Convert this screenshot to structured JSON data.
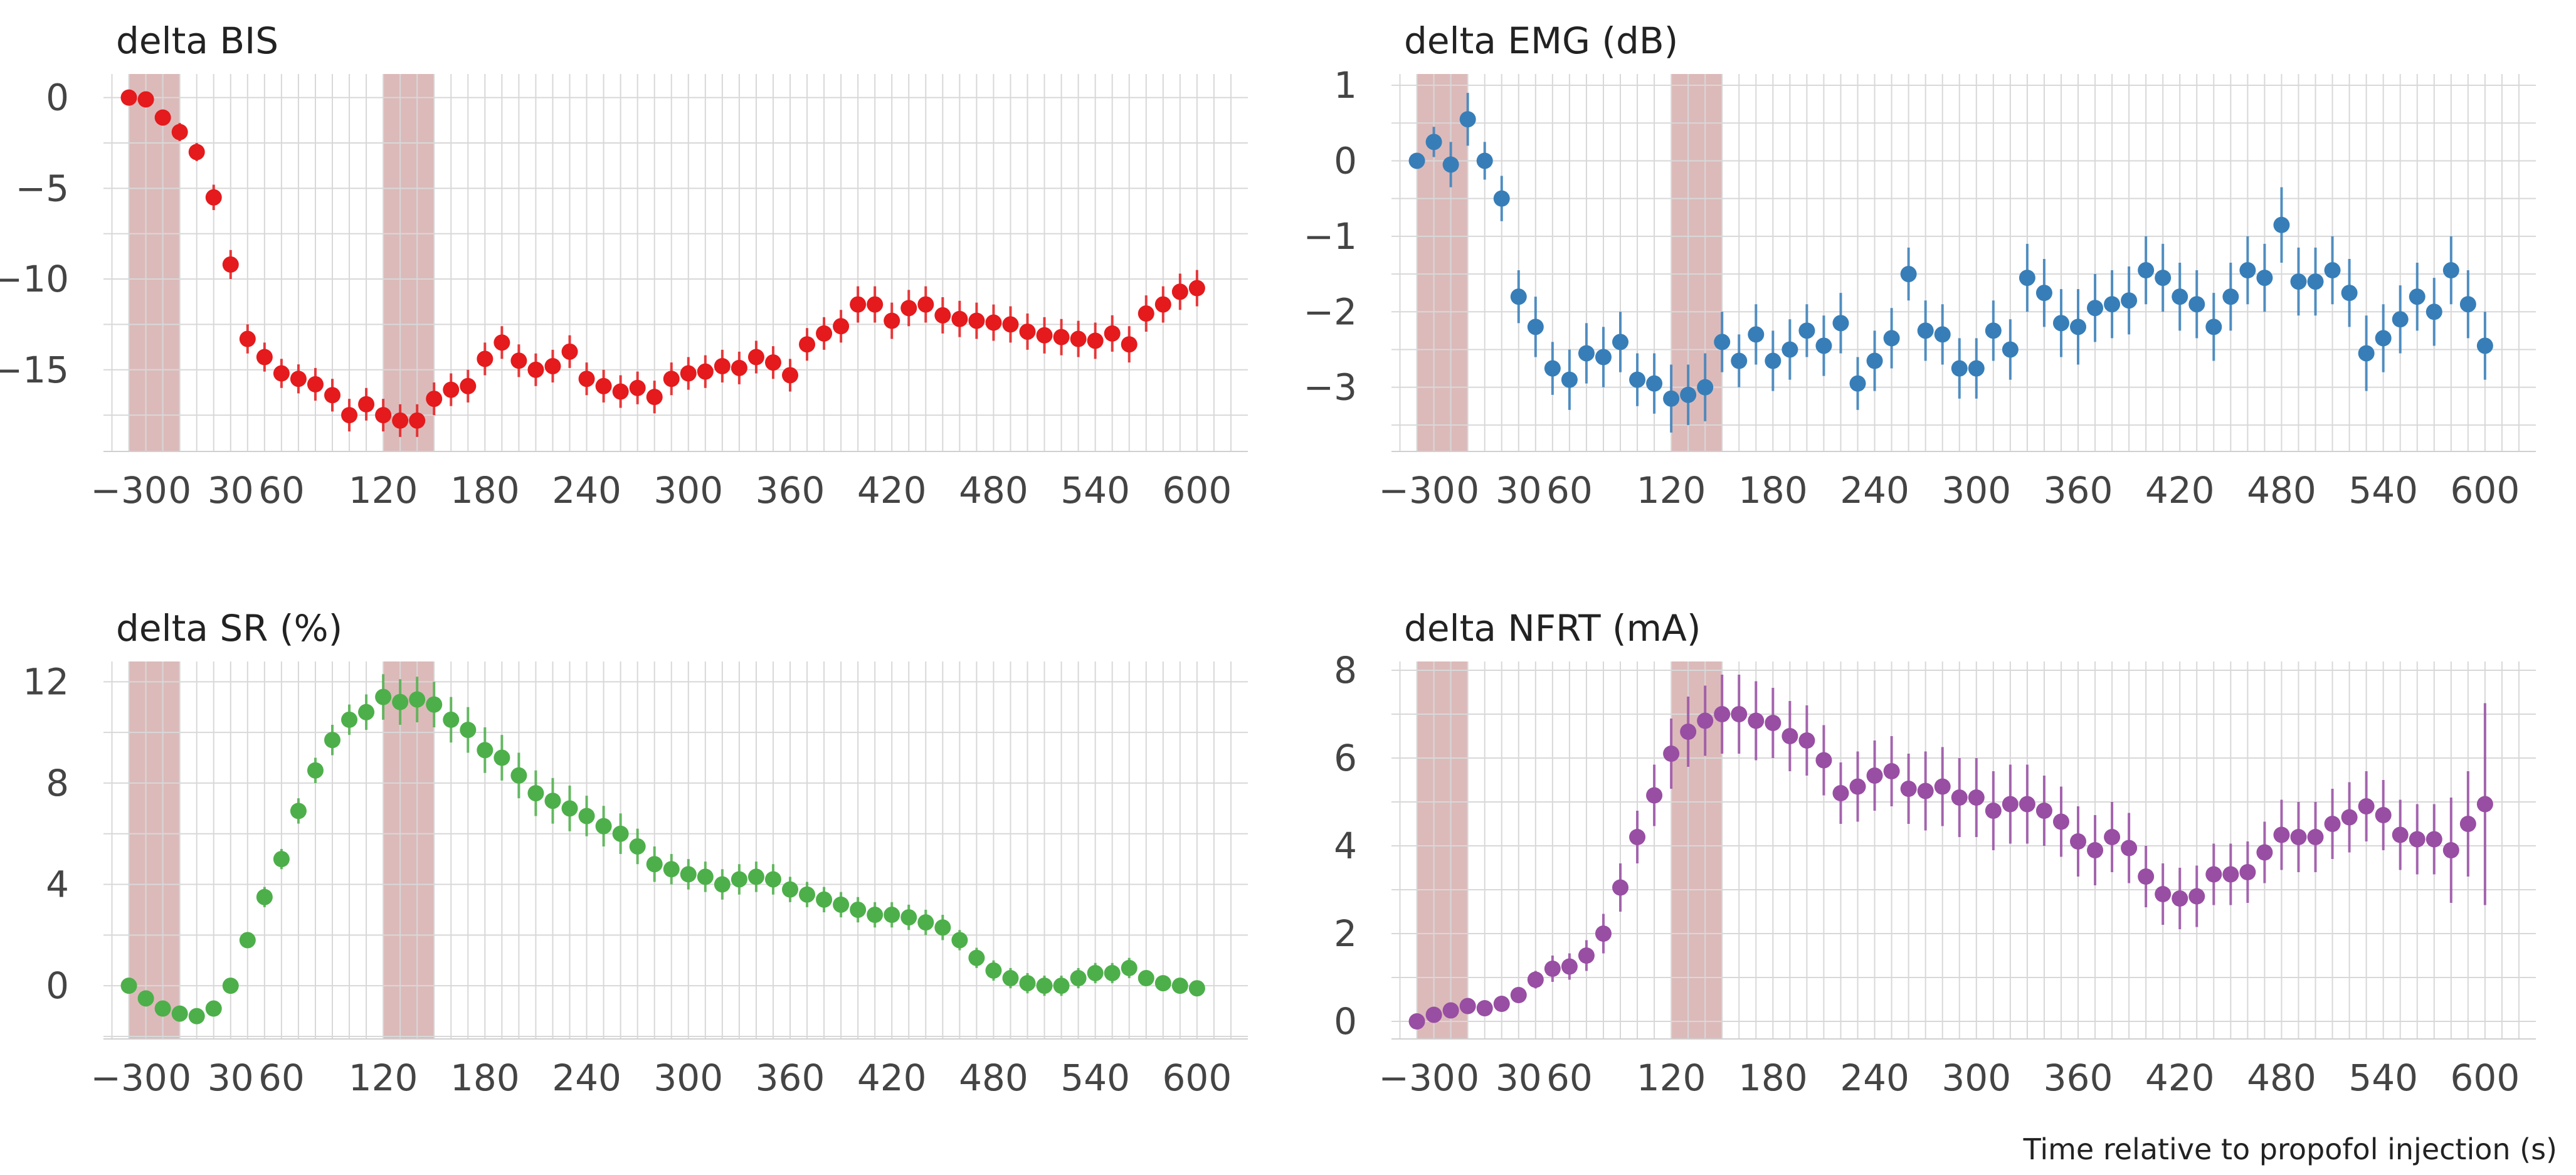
{
  "xlabel": "Time relative to propofol injection (s)",
  "chart_data": [
    {
      "type": "scatter",
      "title": "delta BIS",
      "color": "#e41a1c",
      "x": [
        -30,
        -20,
        -10,
        0,
        10,
        20,
        30,
        40,
        50,
        60,
        70,
        80,
        90,
        100,
        110,
        120,
        130,
        140,
        150,
        160,
        170,
        180,
        190,
        200,
        210,
        220,
        230,
        240,
        250,
        260,
        270,
        280,
        290,
        300,
        310,
        320,
        330,
        340,
        350,
        360,
        370,
        380,
        390,
        400,
        410,
        420,
        430,
        440,
        450,
        460,
        470,
        480,
        490,
        500,
        510,
        520,
        530,
        540,
        550,
        560,
        570,
        580,
        590,
        600
      ],
      "y": [
        0,
        -0.1,
        -1.1,
        -1.9,
        -3.0,
        -5.5,
        -9.2,
        -13.3,
        -14.3,
        -15.2,
        -15.5,
        -15.8,
        -16.4,
        -17.5,
        -16.9,
        -17.5,
        -17.8,
        -17.8,
        -16.6,
        -16.1,
        -15.9,
        -14.4,
        -13.5,
        -14.5,
        -15.0,
        -14.8,
        -14.0,
        -15.5,
        -15.9,
        -16.2,
        -16.0,
        -16.5,
        -15.5,
        -15.2,
        -15.1,
        -14.8,
        -14.9,
        -14.3,
        -14.6,
        -15.3,
        -13.6,
        -13.0,
        -12.6,
        -11.4,
        -11.4,
        -12.3,
        -11.6,
        -11.4,
        -12.0,
        -12.2,
        -12.3,
        -12.4,
        -12.5,
        -12.9,
        -13.1,
        -13.2,
        -13.3,
        -13.4,
        -13.0,
        -13.6,
        -11.9,
        -11.4,
        -10.7,
        -10.5
      ],
      "err": [
        0.3,
        0.3,
        0.4,
        0.5,
        0.5,
        0.7,
        0.8,
        0.8,
        0.8,
        0.8,
        0.8,
        0.9,
        0.9,
        0.9,
        0.9,
        0.9,
        0.9,
        0.9,
        0.9,
        0.9,
        0.9,
        0.9,
        0.9,
        0.9,
        0.9,
        0.9,
        0.9,
        0.9,
        0.9,
        0.9,
        0.9,
        0.9,
        0.9,
        0.9,
        0.9,
        0.9,
        0.9,
        0.9,
        0.9,
        0.9,
        0.9,
        0.9,
        0.9,
        1.0,
        1.0,
        1.0,
        1.0,
        1.0,
        1.0,
        1.0,
        1.0,
        1.0,
        1.0,
        1.0,
        1.0,
        1.0,
        1.0,
        1.0,
        1.0,
        1.0,
        1.0,
        1.0,
        1.0,
        1.0
      ],
      "ylim": [
        -19.5,
        1.3
      ],
      "yticks": [
        0,
        -5,
        -10,
        -15
      ],
      "ytick_labels": [
        "0",
        "−5",
        "−10",
        "−15"
      ],
      "xlim": [
        -45,
        630
      ],
      "xticks": [
        -30,
        0,
        30,
        60,
        120,
        180,
        240,
        300,
        360,
        420,
        480,
        540,
        600
      ],
      "xtick_labels": [
        "−30",
        "0",
        "30",
        "60",
        "120",
        "180",
        "240",
        "300",
        "360",
        "420",
        "480",
        "540",
        "600"
      ],
      "shaded": [
        [
          -30,
          0
        ],
        [
          120,
          150
        ]
      ],
      "grid": true
    },
    {
      "type": "scatter",
      "title": "delta EMG (dB)",
      "color": "#377eb8",
      "x": [
        -30,
        -20,
        -10,
        0,
        10,
        20,
        30,
        40,
        50,
        60,
        70,
        80,
        90,
        100,
        110,
        120,
        130,
        140,
        150,
        160,
        170,
        180,
        190,
        200,
        210,
        220,
        230,
        240,
        250,
        260,
        270,
        280,
        290,
        300,
        310,
        320,
        330,
        340,
        350,
        360,
        370,
        380,
        390,
        400,
        410,
        420,
        430,
        440,
        450,
        460,
        470,
        480,
        490,
        500,
        510,
        520,
        530,
        540,
        550,
        560,
        570,
        580,
        590,
        600
      ],
      "y": [
        0,
        0.25,
        -0.05,
        0.55,
        0,
        -0.5,
        -1.8,
        -2.2,
        -2.75,
        -2.9,
        -2.55,
        -2.6,
        -2.4,
        -2.9,
        -2.95,
        -3.15,
        -3.1,
        -3.0,
        -2.4,
        -2.65,
        -2.3,
        -2.65,
        -2.5,
        -2.25,
        -2.45,
        -2.15,
        -2.95,
        -2.65,
        -2.35,
        -1.5,
        -2.25,
        -2.3,
        -2.75,
        -2.75,
        -2.25,
        -2.5,
        -1.55,
        -1.75,
        -2.15,
        -2.2,
        -1.95,
        -1.9,
        -1.85,
        -1.45,
        -1.55,
        -1.8,
        -1.9,
        -2.2,
        -1.8,
        -1.45,
        -1.55,
        -0.85,
        -1.6,
        -1.6,
        -1.45,
        -1.75,
        -2.55,
        -2.35,
        -2.1,
        -1.8,
        -2.0,
        -1.45,
        -1.9,
        -2.45
      ],
      "err": [
        0.1,
        0.2,
        0.3,
        0.35,
        0.25,
        0.3,
        0.35,
        0.4,
        0.35,
        0.4,
        0.4,
        0.4,
        0.4,
        0.35,
        0.4,
        0.45,
        0.4,
        0.45,
        0.4,
        0.35,
        0.4,
        0.4,
        0.4,
        0.35,
        0.4,
        0.4,
        0.35,
        0.4,
        0.4,
        0.35,
        0.4,
        0.4,
        0.4,
        0.4,
        0.4,
        0.4,
        0.45,
        0.45,
        0.45,
        0.5,
        0.45,
        0.45,
        0.45,
        0.45,
        0.45,
        0.45,
        0.45,
        0.45,
        0.45,
        0.45,
        0.45,
        0.5,
        0.45,
        0.45,
        0.45,
        0.45,
        0.5,
        0.45,
        0.45,
        0.45,
        0.45,
        0.45,
        0.45,
        0.45
      ],
      "ylim": [
        -3.85,
        1.15
      ],
      "yticks": [
        1,
        0,
        -1,
        -2,
        -3
      ],
      "ytick_labels": [
        "1",
        "0",
        "−1",
        "−2",
        "−3"
      ],
      "xlim": [
        -45,
        630
      ],
      "xticks": [
        -30,
        0,
        30,
        60,
        120,
        180,
        240,
        300,
        360,
        420,
        480,
        540,
        600
      ],
      "xtick_labels": [
        "−30",
        "0",
        "30",
        "60",
        "120",
        "180",
        "240",
        "300",
        "360",
        "420",
        "480",
        "540",
        "600"
      ],
      "shaded": [
        [
          -30,
          0
        ],
        [
          120,
          150
        ]
      ],
      "grid": true
    },
    {
      "type": "scatter",
      "title": "delta SR (%)",
      "color": "#4daf4a",
      "x": [
        -30,
        -20,
        -10,
        0,
        10,
        20,
        30,
        40,
        50,
        60,
        70,
        80,
        90,
        100,
        110,
        120,
        130,
        140,
        150,
        160,
        170,
        180,
        190,
        200,
        210,
        220,
        230,
        240,
        250,
        260,
        270,
        280,
        290,
        300,
        310,
        320,
        330,
        340,
        350,
        360,
        370,
        380,
        390,
        400,
        410,
        420,
        430,
        440,
        450,
        460,
        470,
        480,
        490,
        500,
        510,
        520,
        530,
        540,
        550,
        560,
        570,
        580,
        590,
        600
      ],
      "y": [
        0,
        -0.5,
        -0.9,
        -1.1,
        -1.2,
        -0.9,
        0,
        1.8,
        3.5,
        5.0,
        6.9,
        8.5,
        9.7,
        10.5,
        10.8,
        11.4,
        11.2,
        11.3,
        11.1,
        10.5,
        10.1,
        9.3,
        9.0,
        8.3,
        7.6,
        7.3,
        7.0,
        6.7,
        6.3,
        6.0,
        5.5,
        4.8,
        4.6,
        4.4,
        4.3,
        4.0,
        4.2,
        4.3,
        4.2,
        3.8,
        3.6,
        3.4,
        3.2,
        3.0,
        2.8,
        2.8,
        2.7,
        2.5,
        2.3,
        1.8,
        1.1,
        0.6,
        0.3,
        0.1,
        0,
        0,
        0.3,
        0.5,
        0.5,
        0.7,
        0.3,
        0.1,
        0,
        -0.1
      ],
      "err": [
        0.2,
        0.2,
        0.2,
        0.2,
        0.2,
        0.3,
        0.3,
        0.3,
        0.4,
        0.4,
        0.5,
        0.5,
        0.6,
        0.6,
        0.7,
        0.9,
        0.9,
        0.9,
        0.9,
        0.9,
        0.9,
        0.9,
        0.9,
        0.9,
        0.9,
        0.9,
        0.9,
        0.8,
        0.8,
        0.8,
        0.7,
        0.7,
        0.6,
        0.6,
        0.6,
        0.6,
        0.6,
        0.6,
        0.6,
        0.5,
        0.5,
        0.5,
        0.5,
        0.5,
        0.5,
        0.5,
        0.5,
        0.5,
        0.5,
        0.4,
        0.4,
        0.4,
        0.4,
        0.4,
        0.4,
        0.4,
        0.4,
        0.4,
        0.4,
        0.4,
        0.3,
        0.3,
        0.3,
        0.3
      ],
      "ylim": [
        -2.1,
        12.8
      ],
      "yticks": [
        12,
        8,
        4,
        0
      ],
      "ytick_labels": [
        "12",
        "8",
        "4",
        "0"
      ],
      "xlim": [
        -45,
        630
      ],
      "xticks": [
        -30,
        0,
        30,
        60,
        120,
        180,
        240,
        300,
        360,
        420,
        480,
        540,
        600
      ],
      "xtick_labels": [
        "−30",
        "0",
        "30",
        "60",
        "120",
        "180",
        "240",
        "300",
        "360",
        "420",
        "480",
        "540",
        "600"
      ],
      "shaded": [
        [
          -30,
          0
        ],
        [
          120,
          150
        ]
      ],
      "grid": true
    },
    {
      "type": "scatter",
      "title": "delta NFRT (mA)",
      "color": "#984ea3",
      "x": [
        -30,
        -20,
        -10,
        0,
        10,
        20,
        30,
        40,
        50,
        60,
        70,
        80,
        90,
        100,
        110,
        120,
        130,
        140,
        150,
        160,
        170,
        180,
        190,
        200,
        210,
        220,
        230,
        240,
        250,
        260,
        270,
        280,
        290,
        300,
        310,
        320,
        330,
        340,
        350,
        360,
        370,
        380,
        390,
        400,
        410,
        420,
        430,
        440,
        450,
        460,
        470,
        480,
        490,
        500,
        510,
        520,
        530,
        540,
        550,
        560,
        570,
        580,
        590,
        600
      ],
      "y": [
        0,
        0.15,
        0.25,
        0.35,
        0.3,
        0.4,
        0.6,
        0.95,
        1.2,
        1.25,
        1.5,
        2.0,
        3.05,
        4.2,
        5.15,
        6.1,
        6.6,
        6.85,
        7.0,
        7.0,
        6.85,
        6.8,
        6.5,
        6.4,
        5.95,
        5.2,
        5.35,
        5.6,
        5.7,
        5.3,
        5.25,
        5.35,
        5.1,
        5.1,
        4.8,
        4.95,
        4.95,
        4.8,
        4.55,
        4.1,
        3.9,
        4.2,
        3.95,
        3.3,
        2.9,
        2.8,
        2.85,
        3.35,
        3.35,
        3.4,
        3.85,
        4.25,
        4.2,
        4.2,
        4.5,
        4.65,
        4.9,
        4.7,
        4.25,
        4.15,
        4.15,
        3.9,
        4.5,
        4.95
      ],
      "err": [
        0.1,
        0.1,
        0.1,
        0.1,
        0.1,
        0.1,
        0.15,
        0.2,
        0.3,
        0.3,
        0.35,
        0.45,
        0.55,
        0.6,
        0.7,
        0.8,
        0.8,
        0.8,
        0.9,
        0.9,
        0.9,
        0.8,
        0.8,
        0.8,
        0.8,
        0.7,
        0.8,
        0.8,
        0.8,
        0.8,
        0.9,
        0.9,
        0.9,
        0.9,
        0.9,
        0.9,
        0.9,
        0.8,
        0.8,
        0.8,
        0.8,
        0.8,
        0.8,
        0.7,
        0.7,
        0.7,
        0.7,
        0.7,
        0.7,
        0.7,
        0.7,
        0.8,
        0.8,
        0.8,
        0.8,
        0.8,
        0.8,
        0.8,
        0.8,
        0.8,
        0.8,
        1.2,
        1.2,
        2.3
      ],
      "ylim": [
        -0.4,
        8.2
      ],
      "yticks": [
        8,
        6,
        4,
        2,
        0
      ],
      "ytick_labels": [
        "8",
        "6",
        "4",
        "2",
        "0"
      ],
      "xlim": [
        -45,
        630
      ],
      "xticks": [
        -30,
        0,
        30,
        60,
        120,
        180,
        240,
        300,
        360,
        420,
        480,
        540,
        600
      ],
      "xtick_labels": [
        "−30",
        "0",
        "30",
        "60",
        "120",
        "180",
        "240",
        "300",
        "360",
        "420",
        "480",
        "540",
        "600"
      ],
      "shaded": [
        [
          -30,
          0
        ],
        [
          120,
          150
        ]
      ],
      "grid": true
    }
  ]
}
